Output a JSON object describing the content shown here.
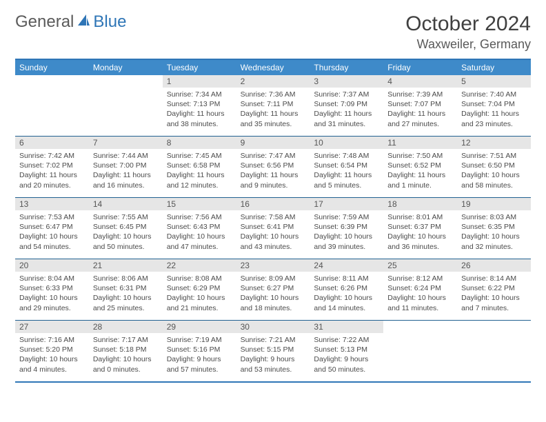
{
  "logo": {
    "word1": "General",
    "word2": "Blue"
  },
  "title": "October 2024",
  "location": "Waxweiler, Germany",
  "header_bg": "#3e8ac9",
  "border_color": "#2e75b6",
  "daynum_bg": "#e6e6e6",
  "weekdays": [
    "Sunday",
    "Monday",
    "Tuesday",
    "Wednesday",
    "Thursday",
    "Friday",
    "Saturday"
  ],
  "weeks": [
    [
      null,
      null,
      {
        "n": 1,
        "sr": "7:34 AM",
        "ss": "7:13 PM",
        "dl": "11 hours and 38 minutes."
      },
      {
        "n": 2,
        "sr": "7:36 AM",
        "ss": "7:11 PM",
        "dl": "11 hours and 35 minutes."
      },
      {
        "n": 3,
        "sr": "7:37 AM",
        "ss": "7:09 PM",
        "dl": "11 hours and 31 minutes."
      },
      {
        "n": 4,
        "sr": "7:39 AM",
        "ss": "7:07 PM",
        "dl": "11 hours and 27 minutes."
      },
      {
        "n": 5,
        "sr": "7:40 AM",
        "ss": "7:04 PM",
        "dl": "11 hours and 23 minutes."
      }
    ],
    [
      {
        "n": 6,
        "sr": "7:42 AM",
        "ss": "7:02 PM",
        "dl": "11 hours and 20 minutes."
      },
      {
        "n": 7,
        "sr": "7:44 AM",
        "ss": "7:00 PM",
        "dl": "11 hours and 16 minutes."
      },
      {
        "n": 8,
        "sr": "7:45 AM",
        "ss": "6:58 PM",
        "dl": "11 hours and 12 minutes."
      },
      {
        "n": 9,
        "sr": "7:47 AM",
        "ss": "6:56 PM",
        "dl": "11 hours and 9 minutes."
      },
      {
        "n": 10,
        "sr": "7:48 AM",
        "ss": "6:54 PM",
        "dl": "11 hours and 5 minutes."
      },
      {
        "n": 11,
        "sr": "7:50 AM",
        "ss": "6:52 PM",
        "dl": "11 hours and 1 minute."
      },
      {
        "n": 12,
        "sr": "7:51 AM",
        "ss": "6:50 PM",
        "dl": "10 hours and 58 minutes."
      }
    ],
    [
      {
        "n": 13,
        "sr": "7:53 AM",
        "ss": "6:47 PM",
        "dl": "10 hours and 54 minutes."
      },
      {
        "n": 14,
        "sr": "7:55 AM",
        "ss": "6:45 PM",
        "dl": "10 hours and 50 minutes."
      },
      {
        "n": 15,
        "sr": "7:56 AM",
        "ss": "6:43 PM",
        "dl": "10 hours and 47 minutes."
      },
      {
        "n": 16,
        "sr": "7:58 AM",
        "ss": "6:41 PM",
        "dl": "10 hours and 43 minutes."
      },
      {
        "n": 17,
        "sr": "7:59 AM",
        "ss": "6:39 PM",
        "dl": "10 hours and 39 minutes."
      },
      {
        "n": 18,
        "sr": "8:01 AM",
        "ss": "6:37 PM",
        "dl": "10 hours and 36 minutes."
      },
      {
        "n": 19,
        "sr": "8:03 AM",
        "ss": "6:35 PM",
        "dl": "10 hours and 32 minutes."
      }
    ],
    [
      {
        "n": 20,
        "sr": "8:04 AM",
        "ss": "6:33 PM",
        "dl": "10 hours and 29 minutes."
      },
      {
        "n": 21,
        "sr": "8:06 AM",
        "ss": "6:31 PM",
        "dl": "10 hours and 25 minutes."
      },
      {
        "n": 22,
        "sr": "8:08 AM",
        "ss": "6:29 PM",
        "dl": "10 hours and 21 minutes."
      },
      {
        "n": 23,
        "sr": "8:09 AM",
        "ss": "6:27 PM",
        "dl": "10 hours and 18 minutes."
      },
      {
        "n": 24,
        "sr": "8:11 AM",
        "ss": "6:26 PM",
        "dl": "10 hours and 14 minutes."
      },
      {
        "n": 25,
        "sr": "8:12 AM",
        "ss": "6:24 PM",
        "dl": "10 hours and 11 minutes."
      },
      {
        "n": 26,
        "sr": "8:14 AM",
        "ss": "6:22 PM",
        "dl": "10 hours and 7 minutes."
      }
    ],
    [
      {
        "n": 27,
        "sr": "7:16 AM",
        "ss": "5:20 PM",
        "dl": "10 hours and 4 minutes."
      },
      {
        "n": 28,
        "sr": "7:17 AM",
        "ss": "5:18 PM",
        "dl": "10 hours and 0 minutes."
      },
      {
        "n": 29,
        "sr": "7:19 AM",
        "ss": "5:16 PM",
        "dl": "9 hours and 57 minutes."
      },
      {
        "n": 30,
        "sr": "7:21 AM",
        "ss": "5:15 PM",
        "dl": "9 hours and 53 minutes."
      },
      {
        "n": 31,
        "sr": "7:22 AM",
        "ss": "5:13 PM",
        "dl": "9 hours and 50 minutes."
      },
      null,
      null
    ]
  ],
  "labels": {
    "sunrise": "Sunrise:",
    "sunset": "Sunset:",
    "daylight": "Daylight:"
  }
}
